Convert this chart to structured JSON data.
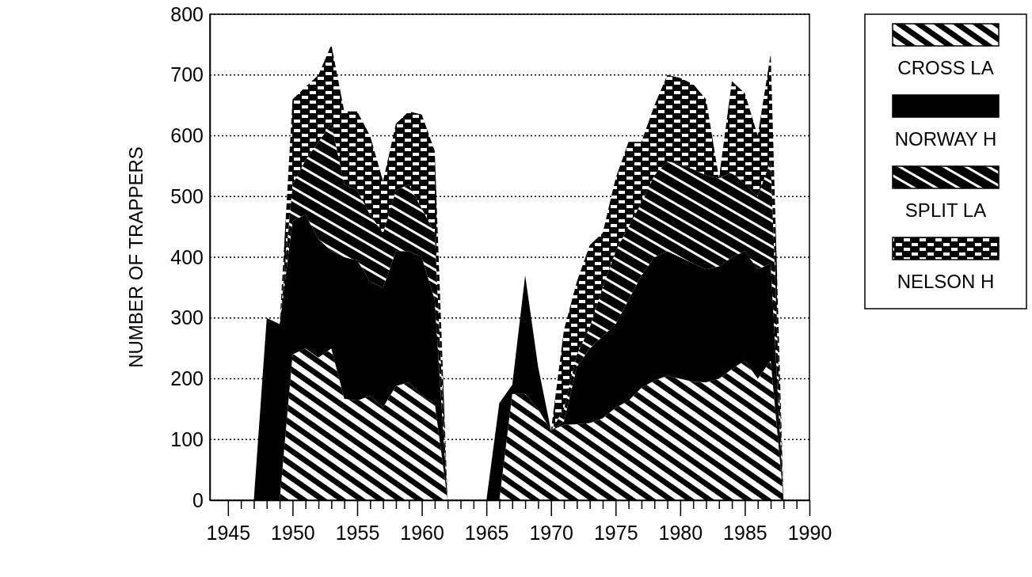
{
  "chart_data": {
    "type": "area",
    "stacked": true,
    "ylabel": "NUMBER OF TRAPPERS",
    "x": [
      1947,
      1948,
      1949,
      1950,
      1951,
      1952,
      1953,
      1954,
      1955,
      1956,
      1957,
      1958,
      1959,
      1960,
      1961,
      1962,
      1963,
      1964,
      1965,
      1966,
      1967,
      1968,
      1969,
      1970,
      1971,
      1972,
      1973,
      1974,
      1975,
      1976,
      1977,
      1978,
      1979,
      1980,
      1981,
      1982,
      1983,
      1984,
      1985,
      1986,
      1987,
      1988
    ],
    "series": [
      {
        "name": "CROSS LA",
        "color": "#000000",
        "values": [
          0,
          0,
          0,
          240,
          250,
          235,
          250,
          167,
          164,
          172,
          153,
          188,
          194,
          172,
          160,
          0,
          0,
          0,
          0,
          0,
          175,
          175,
          150,
          115,
          124,
          125,
          127,
          135,
          152,
          164,
          185,
          197,
          205,
          200,
          195,
          194,
          200,
          216,
          230,
          200,
          230,
          0
        ]
      },
      {
        "name": "NORWAY H",
        "color": "#000000",
        "values": [
          0,
          300,
          290,
          220,
          220,
          195,
          160,
          233,
          231,
          188,
          197,
          222,
          216,
          228,
          170,
          0,
          0,
          0,
          0,
          160,
          15,
          195,
          70,
          0,
          6,
          95,
          123,
          135,
          138,
          166,
          185,
          203,
          205,
          200,
          195,
          186,
          185,
          184,
          180,
          180,
          160,
          0
        ]
      },
      {
        "name": "SPLIT LA",
        "color": "#000000",
        "values": [
          0,
          0,
          0,
          60,
          90,
          160,
          210,
          120,
          115,
          110,
          90,
          100,
          110,
          80,
          110,
          0,
          0,
          0,
          0,
          0,
          0,
          0,
          0,
          0,
          20,
          20,
          35,
          80,
          120,
          120,
          120,
          135,
          148,
          153,
          155,
          155,
          145,
          140,
          110,
          120,
          170,
          0
        ]
      },
      {
        "name": "NELSON H",
        "color": "#000000",
        "values": [
          0,
          0,
          0,
          140,
          120,
          110,
          130,
          120,
          130,
          130,
          85,
          110,
          120,
          155,
          135,
          0,
          0,
          0,
          0,
          0,
          0,
          0,
          0,
          0,
          130,
          120,
          135,
          90,
          120,
          140,
          100,
          115,
          142,
          142,
          140,
          125,
          0,
          150,
          150,
          100,
          175,
          0
        ]
      }
    ],
    "xlim": [
      1943.6,
      1990
    ],
    "xticks": [
      {
        "value": 1945,
        "label": "1945"
      },
      {
        "value": 1946,
        "label": null
      },
      {
        "value": 1947,
        "label": null
      },
      {
        "value": 1948,
        "label": null
      },
      {
        "value": 1949,
        "label": null
      },
      {
        "value": 1950,
        "label": "1950"
      },
      {
        "value": 1951,
        "label": null
      },
      {
        "value": 1952,
        "label": null
      },
      {
        "value": 1953,
        "label": null
      },
      {
        "value": 1954,
        "label": null
      },
      {
        "value": 1955,
        "label": "1955"
      },
      {
        "value": 1956,
        "label": null
      },
      {
        "value": 1957,
        "label": null
      },
      {
        "value": 1958,
        "label": null
      },
      {
        "value": 1959,
        "label": null
      },
      {
        "value": 1960,
        "label": "1960"
      },
      {
        "value": 1961,
        "label": null
      },
      {
        "value": 1962,
        "label": null
      },
      {
        "value": 1963,
        "label": null
      },
      {
        "value": 1964,
        "label": null
      },
      {
        "value": 1965,
        "label": "1965"
      },
      {
        "value": 1966,
        "label": null
      },
      {
        "value": 1967,
        "label": null
      },
      {
        "value": 1968,
        "label": null
      },
      {
        "value": 1969,
        "label": null
      },
      {
        "value": 1970,
        "label": "1970"
      },
      {
        "value": 1971,
        "label": null
      },
      {
        "value": 1972,
        "label": null
      },
      {
        "value": 1973,
        "label": null
      },
      {
        "value": 1974,
        "label": null
      },
      {
        "value": 1975,
        "label": "1975"
      },
      {
        "value": 1976,
        "label": null
      },
      {
        "value": 1977,
        "label": null
      },
      {
        "value": 1978,
        "label": null
      },
      {
        "value": 1979,
        "label": null
      },
      {
        "value": 1980,
        "label": "1980"
      },
      {
        "value": 1981,
        "label": null
      },
      {
        "value": 1982,
        "label": null
      },
      {
        "value": 1983,
        "label": null
      },
      {
        "value": 1984,
        "label": null
      },
      {
        "value": 1985,
        "label": "1985"
      },
      {
        "value": 1986,
        "label": null
      },
      {
        "value": 1987,
        "label": null
      },
      {
        "value": 1988,
        "label": null
      },
      {
        "value": 1989,
        "label": null
      },
      {
        "value": 1990,
        "label": "1990"
      }
    ],
    "ylim": [
      0,
      800
    ],
    "yticks": [
      0,
      100,
      200,
      300,
      400,
      500,
      600,
      700,
      800
    ],
    "grid": "y",
    "legend": "right"
  }
}
